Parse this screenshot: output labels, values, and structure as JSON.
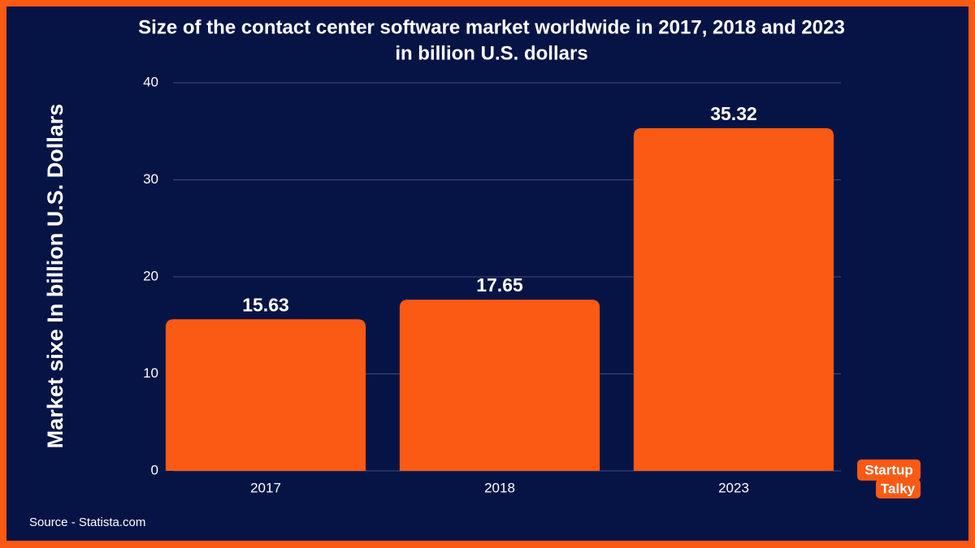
{
  "chart_data": {
    "type": "bar",
    "title": "Size of the contact center software market worldwide in 2017, 2018 and 2023",
    "subtitle": "in billion U.S. dollars",
    "y_label": "Market sixe In billion U.S. Dollars",
    "categories": [
      "2017",
      "2018",
      "2023"
    ],
    "values": [
      15.63,
      17.65,
      35.32
    ],
    "color": "#fb5a15",
    "ylim": [
      0,
      40
    ],
    "yticks": [
      0,
      10,
      20,
      30,
      40
    ],
    "grid": true,
    "source": "Source - Statista.com",
    "logo": [
      "Startup",
      "Talky"
    ]
  }
}
